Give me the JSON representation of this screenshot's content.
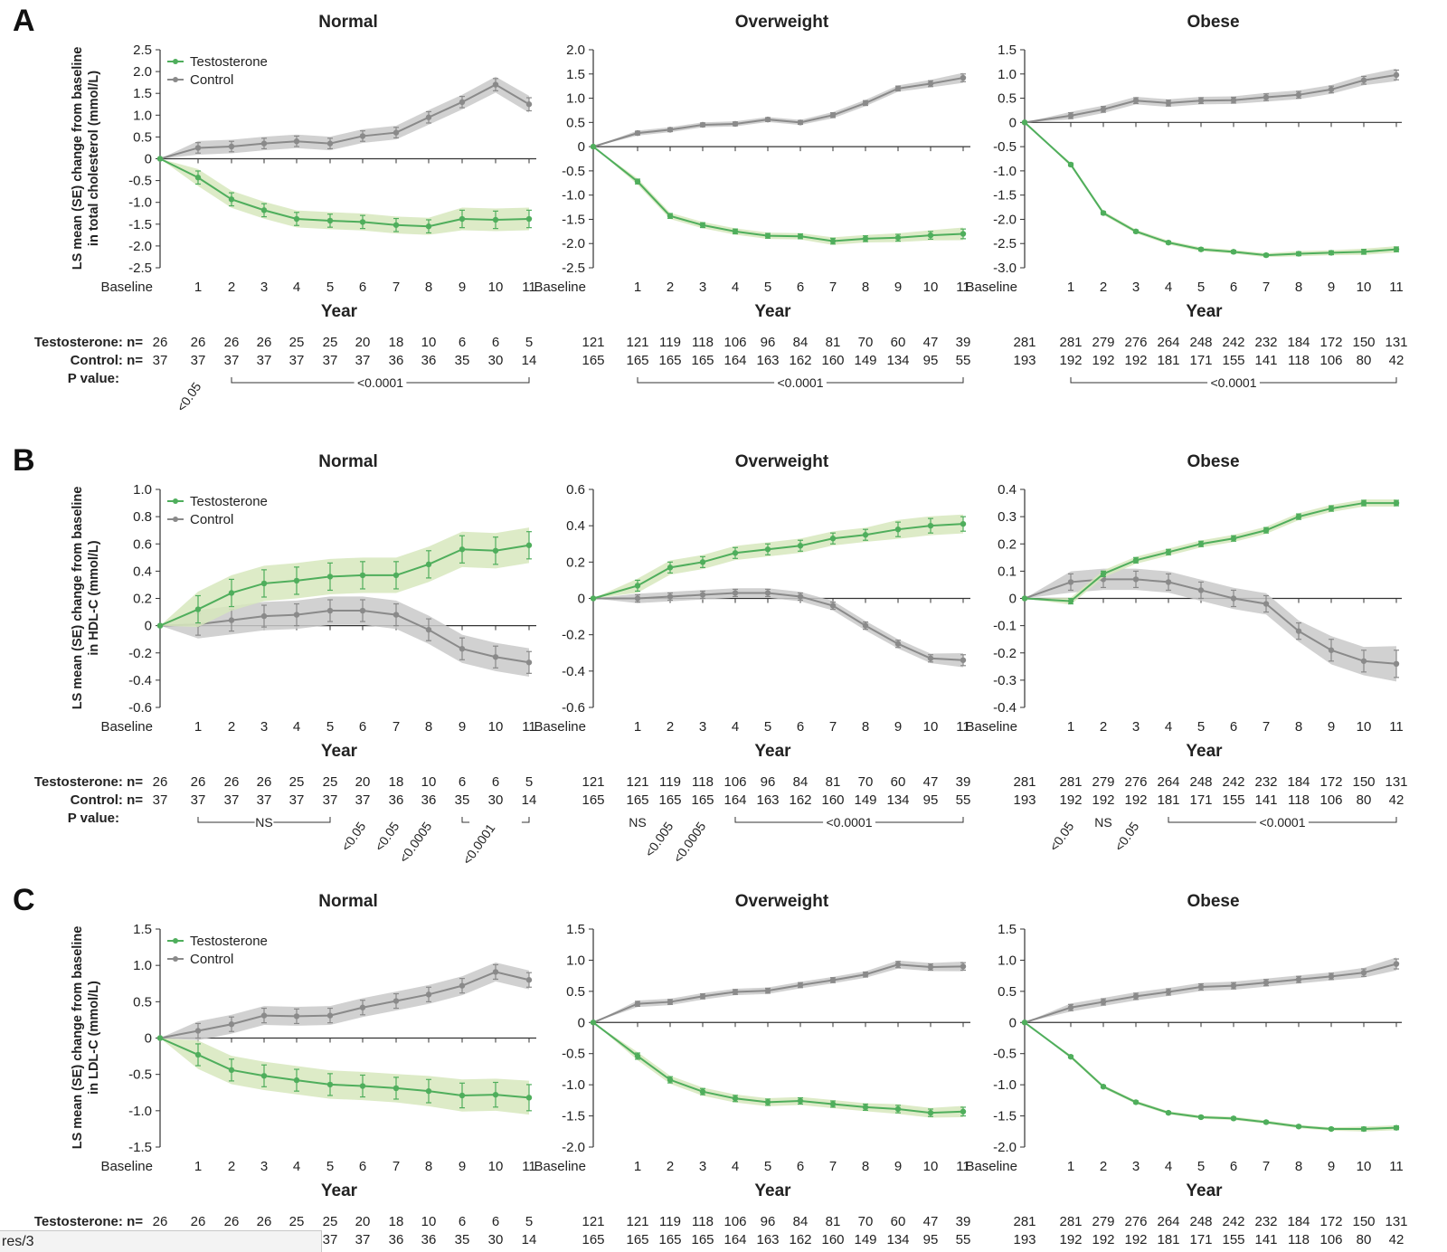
{
  "colors": {
    "testosterone": "#4fae5c",
    "testosterone_band": "#d7e7bd",
    "control": "#8a8a8a",
    "control_band": "#c9c9c9"
  },
  "x_categories": [
    "Baseline",
    "1",
    "2",
    "3",
    "4",
    "5",
    "6",
    "7",
    "8",
    "9",
    "10",
    "11"
  ],
  "xlabel": "Year",
  "legend": [
    "Testosterone",
    "Control"
  ],
  "row_labels": {
    "testosterone": "Testosterone: n=",
    "control": "Control: n=",
    "pvalue": "P value:"
  },
  "groups": [
    "Normal",
    "Overweight",
    "Obese"
  ],
  "counts": {
    "Normal": {
      "testosterone": [
        "26",
        "26",
        "26",
        "26",
        "25",
        "25",
        "20",
        "18",
        "10",
        "6",
        "6",
        "5"
      ],
      "control": [
        "37",
        "37",
        "37",
        "37",
        "37",
        "37",
        "37",
        "36",
        "36",
        "35",
        "30",
        "14"
      ]
    },
    "Overweight": {
      "testosterone": [
        "121",
        "121",
        "119",
        "118",
        "106",
        "96",
        "84",
        "81",
        "70",
        "60",
        "47",
        "39"
      ],
      "control": [
        "165",
        "165",
        "165",
        "165",
        "164",
        "163",
        "162",
        "160",
        "149",
        "134",
        "95",
        "55"
      ]
    },
    "Obese": {
      "testosterone": [
        "281",
        "281",
        "279",
        "276",
        "264",
        "248",
        "242",
        "232",
        "184",
        "172",
        "150",
        "131"
      ],
      "control": [
        "193",
        "192",
        "192",
        "192",
        "181",
        "171",
        "155",
        "141",
        "118",
        "106",
        "80",
        "42"
      ]
    }
  },
  "chart_data": [
    {
      "panel": "A",
      "type": "line",
      "title": "Normal",
      "ylabel": [
        "LS mean (SE) change from baseline",
        "in total cholesterol (mmol/L)"
      ],
      "ylim": [
        -2.5,
        2.5
      ],
      "yticks": [
        -2.5,
        -2.0,
        -1.5,
        -1.0,
        -0.5,
        0,
        0.5,
        1.0,
        1.5,
        2.0,
        2.5
      ],
      "legend": "top-left",
      "series": [
        {
          "name": "Testosterone",
          "values": [
            0,
            -0.43,
            -0.93,
            -1.18,
            -1.38,
            -1.42,
            -1.45,
            -1.52,
            -1.55,
            -1.38,
            -1.4,
            -1.38
          ],
          "se": [
            0,
            0.15,
            0.15,
            0.15,
            0.15,
            0.15,
            0.15,
            0.15,
            0.15,
            0.2,
            0.2,
            0.2
          ]
        },
        {
          "name": "Control",
          "values": [
            0,
            0.25,
            0.28,
            0.35,
            0.4,
            0.35,
            0.52,
            0.6,
            0.95,
            1.3,
            1.7,
            1.25
          ],
          "se": [
            0,
            0.12,
            0.12,
            0.12,
            0.12,
            0.12,
            0.12,
            0.12,
            0.13,
            0.13,
            0.14,
            0.15
          ]
        }
      ],
      "pvalues": [
        {
          "text": "<0.05",
          "at": 1,
          "rotated": true
        },
        {
          "text": "<0.0001",
          "from": 2,
          "to": 11
        }
      ]
    },
    {
      "panel": "A",
      "type": "line",
      "title": "Overweight",
      "ylim": [
        -2.5,
        2.0
      ],
      "yticks": [
        -2.5,
        -2.0,
        -1.5,
        -1.0,
        -0.5,
        0,
        0.5,
        1.0,
        1.5,
        2.0
      ],
      "series": [
        {
          "name": "Testosterone",
          "values": [
            0,
            -0.72,
            -1.43,
            -1.62,
            -1.75,
            -1.84,
            -1.85,
            -1.95,
            -1.9,
            -1.88,
            -1.83,
            -1.8
          ],
          "se": [
            0,
            0.05,
            0.05,
            0.05,
            0.05,
            0.05,
            0.05,
            0.06,
            0.06,
            0.07,
            0.08,
            0.1
          ]
        },
        {
          "name": "Control",
          "values": [
            0,
            0.28,
            0.35,
            0.45,
            0.47,
            0.56,
            0.5,
            0.65,
            0.9,
            1.2,
            1.3,
            1.42
          ],
          "se": [
            0,
            0.04,
            0.04,
            0.04,
            0.04,
            0.04,
            0.04,
            0.05,
            0.05,
            0.05,
            0.06,
            0.08
          ]
        }
      ],
      "pvalues": [
        {
          "text": "<0.0001",
          "from": 1,
          "to": 11
        }
      ]
    },
    {
      "panel": "A",
      "type": "line",
      "title": "Obese",
      "ylim": [
        -3.0,
        1.5
      ],
      "yticks": [
        -3.0,
        -2.5,
        -2.0,
        -1.5,
        -1.0,
        -0.5,
        0,
        0.5,
        1.0,
        1.5
      ],
      "series": [
        {
          "name": "Testosterone",
          "values": [
            0,
            -0.87,
            -1.87,
            -2.25,
            -2.48,
            -2.62,
            -2.67,
            -2.74,
            -2.71,
            -2.69,
            -2.67,
            -2.62
          ],
          "se": [
            0,
            0.03,
            0.03,
            0.03,
            0.03,
            0.03,
            0.03,
            0.03,
            0.04,
            0.04,
            0.05,
            0.05
          ]
        },
        {
          "name": "Control",
          "values": [
            0,
            0.14,
            0.27,
            0.45,
            0.4,
            0.45,
            0.46,
            0.52,
            0.57,
            0.68,
            0.87,
            0.98
          ],
          "se": [
            0,
            0.06,
            0.06,
            0.06,
            0.06,
            0.06,
            0.06,
            0.07,
            0.07,
            0.07,
            0.08,
            0.1
          ]
        }
      ],
      "pvalues": [
        {
          "text": "<0.0001",
          "from": 1,
          "to": 11
        }
      ]
    },
    {
      "panel": "B",
      "type": "line",
      "title": "Normal",
      "ylabel": [
        "LS mean (SE) change from baseline",
        "in HDL-C (mmol/L)"
      ],
      "ylim": [
        -0.6,
        1.0
      ],
      "yticks": [
        -0.6,
        -0.4,
        -0.2,
        0,
        0.2,
        0.4,
        0.6,
        0.8,
        1.0
      ],
      "legend": "top-left",
      "series": [
        {
          "name": "Testosterone",
          "values": [
            0,
            0.12,
            0.24,
            0.31,
            0.33,
            0.36,
            0.37,
            0.37,
            0.45,
            0.56,
            0.55,
            0.59
          ],
          "se": [
            0,
            0.1,
            0.1,
            0.1,
            0.1,
            0.1,
            0.1,
            0.1,
            0.1,
            0.1,
            0.1,
            0.1
          ]
        },
        {
          "name": "Control",
          "values": [
            0,
            0.01,
            0.04,
            0.07,
            0.08,
            0.11,
            0.11,
            0.08,
            -0.03,
            -0.17,
            -0.23,
            -0.27
          ],
          "se": [
            0,
            0.08,
            0.08,
            0.08,
            0.08,
            0.08,
            0.08,
            0.08,
            0.08,
            0.08,
            0.08,
            0.08
          ]
        }
      ],
      "pvalues": [
        {
          "text": "NS",
          "from": 1,
          "to": 5
        },
        {
          "text": "<0.05",
          "at": 6,
          "rotated": true
        },
        {
          "text": "<0.05",
          "at": 7,
          "rotated": true
        },
        {
          "text": "<0.0005",
          "at": 8,
          "rotated": true
        },
        {
          "text": "<0.0001",
          "from": 9,
          "to": 11,
          "rotated_label": true
        }
      ]
    },
    {
      "panel": "B",
      "type": "line",
      "title": "Overweight",
      "ylim": [
        -0.6,
        0.6
      ],
      "yticks": [
        -0.6,
        -0.4,
        -0.2,
        0,
        0.2,
        0.4,
        0.6
      ],
      "series": [
        {
          "name": "Testosterone",
          "values": [
            0,
            0.07,
            0.17,
            0.2,
            0.25,
            0.27,
            0.29,
            0.33,
            0.35,
            0.38,
            0.4,
            0.41
          ],
          "se": [
            0,
            0.03,
            0.03,
            0.03,
            0.03,
            0.03,
            0.03,
            0.03,
            0.03,
            0.04,
            0.04,
            0.04
          ]
        },
        {
          "name": "Control",
          "values": [
            0,
            0.0,
            0.01,
            0.02,
            0.03,
            0.03,
            0.01,
            -0.04,
            -0.15,
            -0.25,
            -0.33,
            -0.34
          ],
          "se": [
            0,
            0.02,
            0.02,
            0.02,
            0.02,
            0.02,
            0.02,
            0.02,
            0.02,
            0.02,
            0.02,
            0.03
          ]
        }
      ],
      "pvalues": [
        {
          "text": "NS",
          "at": 1
        },
        {
          "text": "<0.005",
          "at": 2,
          "rotated": true
        },
        {
          "text": "<0.0005",
          "at": 3,
          "rotated": true
        },
        {
          "text": "<0.0001",
          "from": 4,
          "to": 11
        }
      ]
    },
    {
      "panel": "B",
      "type": "line",
      "title": "Obese",
      "ylim": [
        -0.4,
        0.4
      ],
      "yticks": [
        -0.4,
        -0.3,
        -0.2,
        -0.1,
        0,
        0.1,
        0.2,
        0.3,
        0.4
      ],
      "series": [
        {
          "name": "Testosterone",
          "values": [
            0,
            -0.01,
            0.09,
            0.14,
            0.17,
            0.2,
            0.22,
            0.25,
            0.3,
            0.33,
            0.35,
            0.35
          ],
          "se": [
            0,
            0.01,
            0.01,
            0.01,
            0.01,
            0.01,
            0.01,
            0.01,
            0.01,
            0.01,
            0.01,
            0.01
          ]
        },
        {
          "name": "Control",
          "values": [
            0,
            0.06,
            0.07,
            0.07,
            0.06,
            0.03,
            0.0,
            -0.02,
            -0.12,
            -0.19,
            -0.23,
            -0.24
          ],
          "se": [
            0,
            0.03,
            0.03,
            0.03,
            0.03,
            0.03,
            0.03,
            0.03,
            0.03,
            0.04,
            0.04,
            0.05
          ]
        }
      ],
      "pvalues": [
        {
          "text": "<0.05",
          "at": 1,
          "rotated": true
        },
        {
          "text": "NS",
          "at": 2
        },
        {
          "text": "<0.05",
          "at": 3,
          "rotated": true
        },
        {
          "text": "<0.0001",
          "from": 4,
          "to": 11
        }
      ]
    },
    {
      "panel": "C",
      "type": "line",
      "title": "Normal",
      "ylabel": [
        "LS mean (SE) change from baseline",
        "in LDL-C (mmol/L)"
      ],
      "ylim": [
        -1.5,
        1.5
      ],
      "yticks": [
        -1.5,
        -1.0,
        -0.5,
        0,
        0.5,
        1.0,
        1.5
      ],
      "legend": "top-left",
      "series": [
        {
          "name": "Testosterone",
          "values": [
            0,
            -0.23,
            -0.44,
            -0.52,
            -0.58,
            -0.64,
            -0.66,
            -0.69,
            -0.73,
            -0.79,
            -0.78,
            -0.82
          ],
          "se": [
            0,
            0.15,
            0.15,
            0.15,
            0.15,
            0.15,
            0.15,
            0.15,
            0.16,
            0.17,
            0.17,
            0.18
          ]
        },
        {
          "name": "Control",
          "values": [
            0,
            0.1,
            0.19,
            0.31,
            0.3,
            0.31,
            0.42,
            0.51,
            0.6,
            0.72,
            0.91,
            0.8
          ],
          "se": [
            0,
            0.1,
            0.1,
            0.1,
            0.1,
            0.1,
            0.1,
            0.1,
            0.1,
            0.1,
            0.1,
            0.1
          ]
        }
      ],
      "pvalues": []
    },
    {
      "panel": "C",
      "type": "line",
      "title": "Overweight",
      "ylim": [
        -2.0,
        1.5
      ],
      "yticks": [
        -2.0,
        -1.5,
        -1.0,
        -0.5,
        0,
        0.5,
        1.0,
        1.5
      ],
      "series": [
        {
          "name": "Testosterone",
          "values": [
            0,
            -0.54,
            -0.92,
            -1.11,
            -1.22,
            -1.28,
            -1.26,
            -1.31,
            -1.36,
            -1.39,
            -1.45,
            -1.43
          ],
          "se": [
            0,
            0.05,
            0.05,
            0.05,
            0.05,
            0.05,
            0.05,
            0.05,
            0.05,
            0.06,
            0.06,
            0.07
          ]
        },
        {
          "name": "Control",
          "values": [
            0,
            0.3,
            0.33,
            0.42,
            0.49,
            0.51,
            0.6,
            0.68,
            0.77,
            0.93,
            0.89,
            0.9
          ],
          "se": [
            0,
            0.04,
            0.04,
            0.04,
            0.04,
            0.04,
            0.04,
            0.04,
            0.04,
            0.05,
            0.05,
            0.06
          ]
        }
      ],
      "pvalues": []
    },
    {
      "panel": "C",
      "type": "line",
      "title": "Obese",
      "ylim": [
        -2.0,
        1.5
      ],
      "yticks": [
        -2.0,
        -1.5,
        -1.0,
        -0.5,
        0,
        0.5,
        1.0,
        1.5
      ],
      "series": [
        {
          "name": "Testosterone",
          "values": [
            0,
            -0.55,
            -1.03,
            -1.28,
            -1.45,
            -1.52,
            -1.54,
            -1.6,
            -1.67,
            -1.71,
            -1.71,
            -1.69
          ],
          "se": [
            0,
            0.02,
            0.02,
            0.02,
            0.02,
            0.02,
            0.02,
            0.02,
            0.02,
            0.02,
            0.03,
            0.03
          ]
        },
        {
          "name": "Control",
          "values": [
            0,
            0.24,
            0.33,
            0.42,
            0.49,
            0.57,
            0.59,
            0.64,
            0.69,
            0.74,
            0.8,
            0.94
          ],
          "se": [
            0,
            0.05,
            0.05,
            0.05,
            0.05,
            0.05,
            0.05,
            0.05,
            0.05,
            0.05,
            0.06,
            0.08
          ]
        }
      ],
      "pvalues": []
    }
  ],
  "status_tab": "res/3"
}
